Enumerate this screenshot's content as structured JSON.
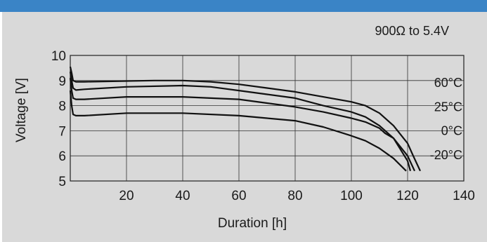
{
  "chart_data": {
    "type": "line",
    "annotation": "900Ω to 5.4V",
    "xlabel": "Duration [h]",
    "ylabel": "Voltage [V]",
    "xlim": [
      0,
      140
    ],
    "ylim": [
      5,
      10
    ],
    "xticks": [
      20,
      40,
      60,
      80,
      100,
      120,
      140
    ],
    "yticks": [
      5,
      6,
      7,
      8,
      9,
      10
    ],
    "grid": true,
    "series": [
      {
        "name": "60°C",
        "points": [
          [
            0,
            9.55
          ],
          [
            0.5,
            9.3
          ],
          [
            1,
            9.0
          ],
          [
            2,
            8.95
          ],
          [
            5,
            8.95
          ],
          [
            20,
            8.98
          ],
          [
            30,
            9.0
          ],
          [
            40,
            9.0
          ],
          [
            50,
            8.95
          ],
          [
            60,
            8.85
          ],
          [
            70,
            8.7
          ],
          [
            80,
            8.55
          ],
          [
            90,
            8.35
          ],
          [
            100,
            8.15
          ],
          [
            105,
            8.0
          ],
          [
            110,
            7.7
          ],
          [
            115,
            7.2
          ],
          [
            120,
            6.5
          ],
          [
            122,
            6.0
          ],
          [
            124.5,
            5.4
          ]
        ]
      },
      {
        "name": "25°C",
        "points": [
          [
            0,
            9.35
          ],
          [
            0.5,
            9.0
          ],
          [
            1,
            8.7
          ],
          [
            2,
            8.62
          ],
          [
            5,
            8.65
          ],
          [
            20,
            8.75
          ],
          [
            40,
            8.8
          ],
          [
            50,
            8.75
          ],
          [
            60,
            8.6
          ],
          [
            70,
            8.45
          ],
          [
            80,
            8.3
          ],
          [
            90,
            8.0
          ],
          [
            100,
            7.75
          ],
          [
            105,
            7.55
          ],
          [
            110,
            7.2
          ],
          [
            115,
            6.7
          ],
          [
            120,
            6.0
          ],
          [
            122.5,
            5.4
          ]
        ]
      },
      {
        "name": "0°C",
        "points": [
          [
            0,
            9.1
          ],
          [
            0.5,
            8.6
          ],
          [
            1,
            8.3
          ],
          [
            2,
            8.25
          ],
          [
            5,
            8.25
          ],
          [
            20,
            8.35
          ],
          [
            40,
            8.35
          ],
          [
            60,
            8.25
          ],
          [
            70,
            8.1
          ],
          [
            80,
            7.95
          ],
          [
            90,
            7.75
          ],
          [
            100,
            7.5
          ],
          [
            105,
            7.35
          ],
          [
            110,
            7.1
          ],
          [
            112,
            6.9
          ],
          [
            115,
            6.7
          ],
          [
            120,
            5.8
          ],
          [
            121,
            5.4
          ]
        ]
      },
      {
        "name": "-20°C",
        "points": [
          [
            0,
            8.6
          ],
          [
            0.5,
            8.0
          ],
          [
            1,
            7.65
          ],
          [
            2,
            7.6
          ],
          [
            5,
            7.6
          ],
          [
            20,
            7.7
          ],
          [
            40,
            7.7
          ],
          [
            60,
            7.6
          ],
          [
            70,
            7.5
          ],
          [
            80,
            7.4
          ],
          [
            90,
            7.15
          ],
          [
            100,
            6.8
          ],
          [
            105,
            6.6
          ],
          [
            110,
            6.3
          ],
          [
            115,
            5.9
          ],
          [
            119.5,
            5.4
          ]
        ]
      }
    ]
  }
}
